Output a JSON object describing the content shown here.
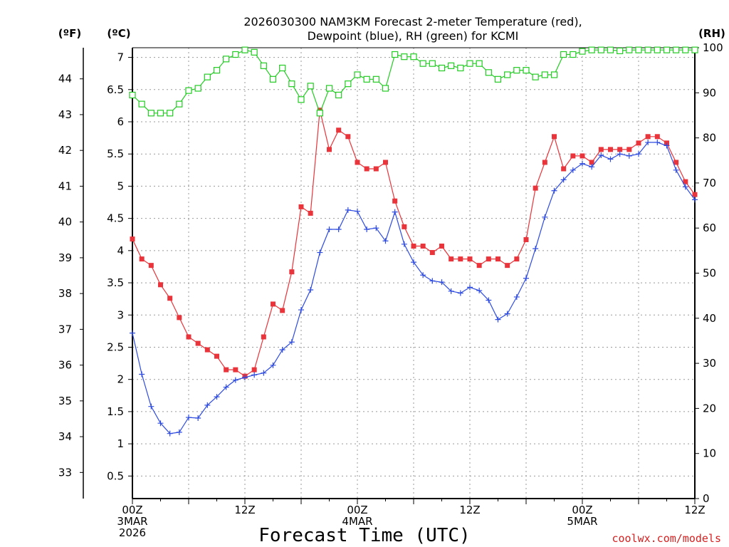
{
  "chart_data": {
    "type": "line",
    "title_line1": "2026030300 NAM3KM Forecast 2-meter Temperature (red),",
    "title_line2": "Dewpoint (blue), RH (green) for KCMI",
    "xlabel": "Forecast Time (UTC)",
    "credit": "coolwx.com/models",
    "units": {
      "fahrenheit": "(ºF)",
      "celsius": "(ºC)",
      "rh": "(RH)"
    },
    "xlim": [
      0,
      60
    ],
    "ylim_c": [
      0.15,
      7.15
    ],
    "ylim_rh": [
      0,
      100
    ],
    "yticks_c": [
      0.5,
      1,
      1.5,
      2,
      2.5,
      3,
      3.5,
      4,
      4.5,
      5,
      5.5,
      6,
      6.5,
      7
    ],
    "yticks_f": [
      33,
      34,
      35,
      36,
      37,
      38,
      39,
      40,
      41,
      42,
      43,
      44
    ],
    "yticks_rh": [
      0,
      10,
      20,
      30,
      40,
      50,
      60,
      70,
      80,
      90,
      100
    ],
    "xticks": [
      {
        "x": 0,
        "lines": [
          "00Z",
          "3MAR",
          "2026"
        ]
      },
      {
        "x": 12,
        "lines": [
          "12Z"
        ]
      },
      {
        "x": 24,
        "lines": [
          "00Z",
          "4MAR"
        ]
      },
      {
        "x": 36,
        "lines": [
          "12Z"
        ]
      },
      {
        "x": 48,
        "lines": [
          "00Z",
          "5MAR"
        ]
      },
      {
        "x": 60,
        "lines": [
          "12Z"
        ]
      }
    ],
    "x": [
      0,
      1,
      2,
      3,
      4,
      5,
      6,
      7,
      8,
      9,
      10,
      11,
      12,
      13,
      14,
      15,
      16,
      17,
      18,
      19,
      20,
      21,
      22,
      23,
      24,
      25,
      26,
      27,
      28,
      29,
      30,
      31,
      32,
      33,
      34,
      35,
      36,
      37,
      38,
      39,
      40,
      41,
      42,
      43,
      44,
      45,
      46,
      47,
      48,
      49,
      50,
      51,
      52,
      53,
      54,
      55,
      56,
      57,
      58,
      59,
      60
    ],
    "series": [
      {
        "name": "Temperature",
        "axis": "celsius",
        "color": "#e8343a",
        "marker": "filled-square",
        "values": [
          4.18,
          3.87,
          3.77,
          3.47,
          3.26,
          2.96,
          2.66,
          2.56,
          2.46,
          2.36,
          2.15,
          2.15,
          2.05,
          2.15,
          2.66,
          3.17,
          3.07,
          3.67,
          4.68,
          4.58,
          6.18,
          5.57,
          5.87,
          5.77,
          5.37,
          5.27,
          5.27,
          5.37,
          4.77,
          4.37,
          4.07,
          4.07,
          3.97,
          4.07,
          3.87,
          3.87,
          3.87,
          3.77,
          3.87,
          3.87,
          3.77,
          3.87,
          4.17,
          4.97,
          5.37,
          5.77,
          5.27,
          5.47,
          5.47,
          5.37,
          5.57,
          5.57,
          5.57,
          5.57,
          5.67,
          5.77,
          5.77,
          5.67,
          5.37,
          5.07,
          4.87
        ]
      },
      {
        "name": "Dewpoint",
        "axis": "celsius",
        "color": "#2e4be0",
        "marker": "plus",
        "values": [
          2.72,
          2.08,
          1.58,
          1.32,
          1.16,
          1.18,
          1.41,
          1.4,
          1.6,
          1.73,
          1.88,
          1.99,
          2.03,
          2.07,
          2.1,
          2.22,
          2.46,
          2.58,
          3.08,
          3.39,
          3.97,
          4.33,
          4.33,
          4.63,
          4.61,
          4.33,
          4.35,
          4.15,
          4.6,
          4.1,
          3.82,
          3.62,
          3.53,
          3.51,
          3.37,
          3.34,
          3.43,
          3.38,
          3.23,
          2.93,
          3.02,
          3.28,
          3.57,
          4.03,
          4.52,
          4.93,
          5.1,
          5.25,
          5.35,
          5.3,
          5.48,
          5.42,
          5.5,
          5.47,
          5.5,
          5.68,
          5.68,
          5.63,
          5.25,
          4.99,
          4.79
        ]
      },
      {
        "name": "RH",
        "axis": "rh",
        "color": "#22cc22",
        "marker": "open-square",
        "values": [
          89.5,
          87.5,
          85.5,
          85.5,
          85.5,
          87.5,
          90.5,
          91,
          93.5,
          95,
          97.5,
          98.5,
          99.5,
          99,
          96,
          93,
          95.5,
          92,
          88.5,
          91.5,
          85.5,
          91,
          89.5,
          92,
          94,
          93,
          93,
          91,
          98.5,
          98,
          98,
          96.5,
          96.5,
          95.5,
          96,
          95.5,
          96.5,
          96.5,
          94.5,
          93,
          94,
          95,
          95,
          93.5,
          94,
          94,
          98.5,
          98.5,
          99.2,
          99.5,
          99.5,
          99.5,
          99.3,
          99.5,
          99.5,
          99.5,
          99.5,
          99.5,
          99.5,
          99.5,
          99.5
        ]
      }
    ]
  }
}
